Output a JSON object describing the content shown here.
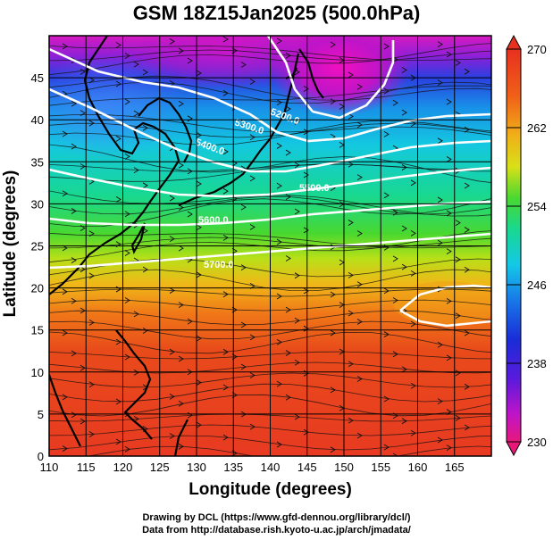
{
  "title": "GSM 18Z15Jan2025 (500.0hPa)",
  "xlabel": "Longitude (degrees)",
  "ylabel": "Latitude  (degrees)",
  "credits": [
    "Drawing by DCL (https://www.gfd-dennou.org/library/dcl/)",
    "Data from http://database.rish.kyoto-u.ac.jp/arch/jmadata/"
  ],
  "chart_data": {
    "type": "heatmap",
    "variable": "temperature (K) with geopotential height contours and streamlines",
    "x_ticks": [
      "110",
      "115",
      "120",
      "125",
      "130",
      "135",
      "140",
      "145",
      "150",
      "155",
      "160",
      "165"
    ],
    "y_ticks": [
      "0",
      "5",
      "10",
      "15",
      "20",
      "25",
      "30",
      "35",
      "40",
      "45"
    ],
    "xlim": [
      110,
      170
    ],
    "ylim": [
      0,
      50
    ],
    "grid": true,
    "colorbar": {
      "min": 230,
      "max": 270,
      "labels": [
        "270",
        "262",
        "254",
        "246",
        "238",
        "230"
      ],
      "colors": [
        "#e8187a",
        "#c414c8",
        "#5a1adc",
        "#1a2cd8",
        "#1a7ce8",
        "#14c8e8",
        "#14d8a0",
        "#3ad83a",
        "#a8e818",
        "#f0c818",
        "#f08018",
        "#e84818",
        "#e83020"
      ]
    },
    "contours": [
      {
        "label": "5200.0",
        "lon": 148,
        "lat": 46
      },
      {
        "label": "5300.0",
        "lon": 139,
        "lat": 41.5
      },
      {
        "label": "5400.0",
        "lon": 133,
        "lat": 38.5
      },
      {
        "label": "5500.0",
        "lon": 147,
        "lat": 34
      },
      {
        "label": "5600.0",
        "lon": 132,
        "lat": 29
      },
      {
        "label": "5700.0",
        "lon": 128,
        "lat": 23.5
      }
    ]
  }
}
